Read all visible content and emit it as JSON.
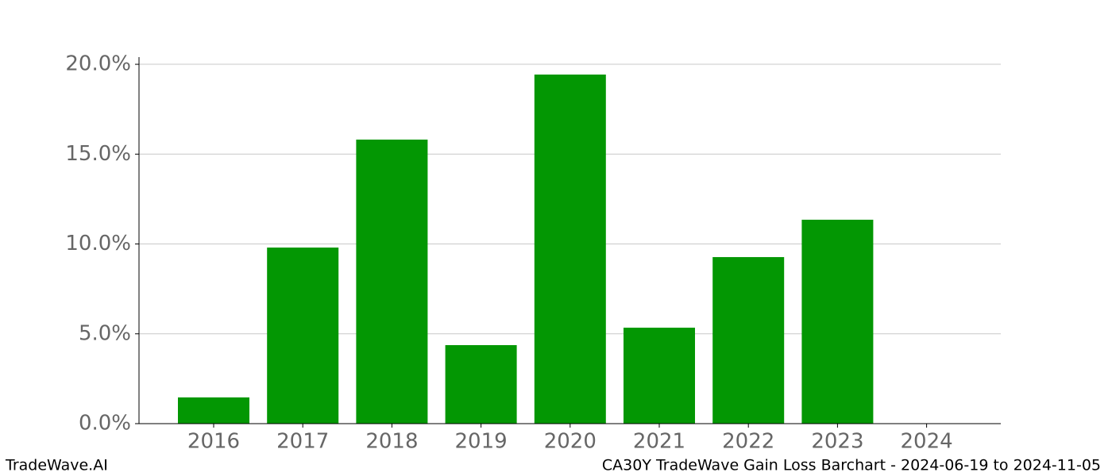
{
  "chart_data": {
    "type": "bar",
    "title": "CA30Y TradeWave Gain Loss Barchart - 2024-06-19 to 2024-11-05",
    "credit": "TradeWave.AI",
    "categories": [
      "2016",
      "2017",
      "2018",
      "2019",
      "2020",
      "2021",
      "2022",
      "2023",
      "2024"
    ],
    "values": [
      1.46,
      9.8,
      15.81,
      4.37,
      19.43,
      5.34,
      9.27,
      11.35,
      0
    ],
    "color": "#039703",
    "ylim": [
      0,
      20.4
    ],
    "yticks": [
      {
        "value": 0,
        "label": "0.0%"
      },
      {
        "value": 5,
        "label": "5.0%"
      },
      {
        "value": 10,
        "label": "10.0%"
      },
      {
        "value": 15,
        "label": "15.0%"
      },
      {
        "value": 20,
        "label": "20.0%"
      }
    ],
    "grid": true
  }
}
